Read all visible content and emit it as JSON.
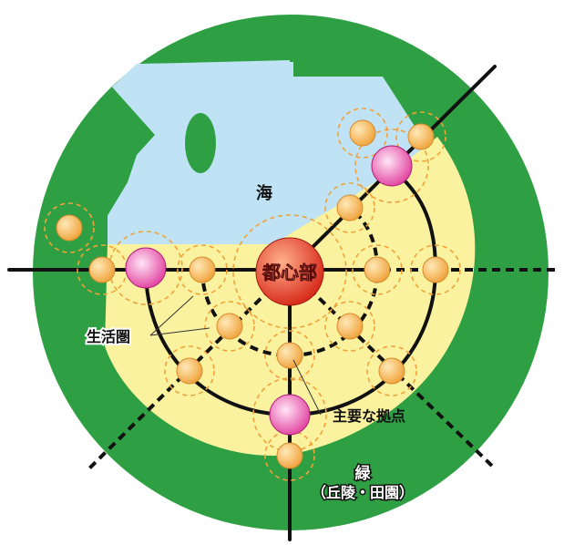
{
  "labels": {
    "center": "都心部",
    "sea": "海",
    "living_sphere": "生活圏",
    "major_hub": "主要な拠点",
    "green": "緑",
    "green_sub": "（丘陵・田園）"
  },
  "colors": {
    "green": "#2ea043",
    "sea": "#bfe2f5",
    "land": "#fbf2a0",
    "line": "#111111",
    "small_node": "#f0a23a",
    "small_node_light": "#ffe9b8",
    "major_node": "#e0369a",
    "major_node_light": "#ffe6f6",
    "center_node": "#d62518",
    "center_node_light": "#ffb08a",
    "sphere_ring": "#f0a23a"
  },
  "icons": {
    "center_node": "red-sphere",
    "major_node": "magenta-sphere",
    "small_node": "orange-sphere",
    "sphere_ring": "dashed-circle"
  }
}
